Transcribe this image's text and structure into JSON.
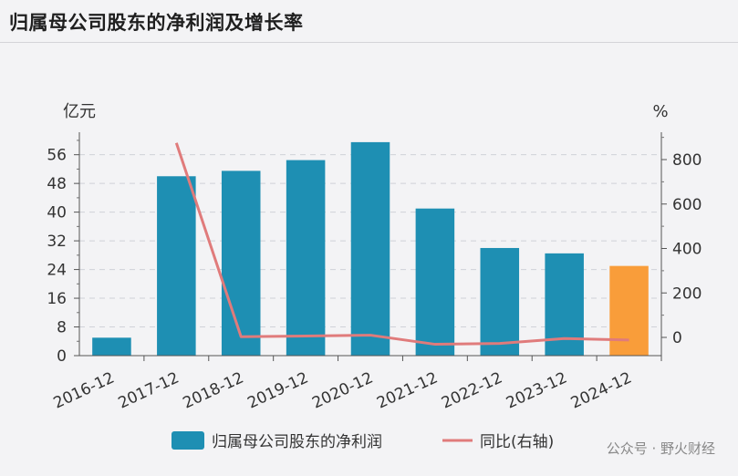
{
  "title": "归属母公司股东的净利润及增长率",
  "watermark": "公众号 · 野火财经",
  "chart_data": {
    "type": "bar",
    "categories": [
      "2016-12",
      "2017-12",
      "2018-12",
      "2019-12",
      "2020-12",
      "2021-12",
      "2022-12",
      "2023-12",
      "2024-12"
    ],
    "series": [
      {
        "name": "归属母公司股东的净利润",
        "type": "bar",
        "axis": "left",
        "values": [
          5.0,
          50.0,
          51.5,
          54.5,
          59.5,
          41.0,
          30.0,
          28.5,
          25.0
        ],
        "colors": [
          "#1e8fb3",
          "#1e8fb3",
          "#1e8fb3",
          "#1e8fb3",
          "#1e8fb3",
          "#1e8fb3",
          "#1e8fb3",
          "#1e8fb3",
          "#f99d3a"
        ]
      },
      {
        "name": "同比(右轴)",
        "type": "line",
        "axis": "right",
        "color": "#e07b7b",
        "values": [
          null,
          875,
          3,
          6,
          10,
          -31,
          -27,
          -5,
          -12
        ]
      }
    ],
    "left_axis": {
      "unit": "亿元",
      "ticks": [
        0,
        8,
        16,
        24,
        32,
        40,
        48,
        56
      ],
      "range": [
        0,
        61
      ]
    },
    "right_axis": {
      "unit": "%",
      "ticks": [
        0,
        200,
        400,
        600,
        800
      ],
      "range": [
        -80,
        900
      ]
    },
    "grid": true,
    "legend_position": "bottom"
  }
}
